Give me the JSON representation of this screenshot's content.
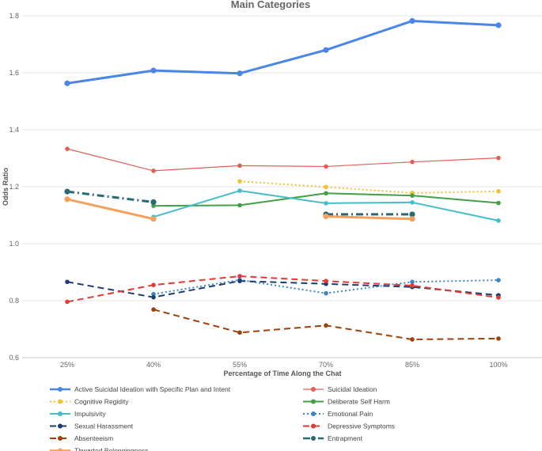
{
  "chart_data": {
    "type": "line",
    "title": "Main Categories",
    "xlabel": "Percentage of Time Along the Chat",
    "ylabel": "Odds Ratio",
    "categories": [
      "25%",
      "40%",
      "55%",
      "70%",
      "85%",
      "100%"
    ],
    "ylim": [
      0.6,
      1.8
    ],
    "yticks": [
      "0.6",
      "0.8",
      "1.0",
      "1.2",
      "1.4",
      "1.6",
      "1.8"
    ],
    "grid": true,
    "legend_position": "bottom",
    "series": [
      {
        "name": "Active Suicidal Ideation with Specific Plan and Intent",
        "color": "#4a86e8",
        "style": "solid",
        "width": 3,
        "values": [
          1.563,
          1.608,
          1.598,
          1.68,
          1.782,
          1.767
        ]
      },
      {
        "name": "Suicidal Ideation",
        "color": "#e06055",
        "style": "solid",
        "width": 1.2,
        "values": [
          1.333,
          1.256,
          1.274,
          1.271,
          1.287,
          1.301
        ]
      },
      {
        "name": "Cognitive Regidity",
        "color": "#f1c232",
        "style": "dotted",
        "width": 2,
        "values": [
          null,
          null,
          1.219,
          1.199,
          1.178,
          1.184
        ]
      },
      {
        "name": "Deliberate Self Harm",
        "color": "#43a047",
        "style": "solid",
        "width": 2,
        "values": [
          null,
          1.133,
          1.135,
          1.177,
          1.169,
          1.143
        ]
      },
      {
        "name": "Impulsivity",
        "color": "#46bdc6",
        "style": "solid",
        "width": 2,
        "values": [
          null,
          1.094,
          1.186,
          1.142,
          1.145,
          1.081
        ]
      },
      {
        "name": "Emotional Pain",
        "color": "#3d85c6",
        "style": "dotted",
        "width": 2,
        "values": [
          null,
          0.823,
          0.873,
          0.826,
          0.866,
          0.872
        ]
      },
      {
        "name": "Sexual Harassment",
        "color": "#1c3d73",
        "style": "dashed",
        "width": 2,
        "values": [
          0.866,
          0.812,
          0.869,
          0.859,
          0.848,
          0.819
        ]
      },
      {
        "name": "Depressive Symptoms",
        "color": "#e53935",
        "style": "dashed",
        "width": 2,
        "values": [
          0.796,
          0.855,
          0.886,
          0.869,
          0.853,
          0.811
        ]
      },
      {
        "name": "Absenteeism",
        "color": "#a0410d",
        "style": "dashed",
        "width": 2,
        "values": [
          null,
          0.769,
          0.688,
          0.713,
          0.664,
          0.667
        ]
      },
      {
        "name": "Entrapment",
        "color": "#276a73",
        "style": "dashdot",
        "width": 3,
        "values": [
          1.183,
          1.146,
          null,
          1.103,
          1.103,
          null
        ]
      },
      {
        "name": "Thwarted Belongingness",
        "color": "#f6a05e",
        "style": "solid",
        "width": 3,
        "values": [
          1.156,
          1.087,
          null,
          1.096,
          1.087,
          null
        ]
      }
    ]
  }
}
